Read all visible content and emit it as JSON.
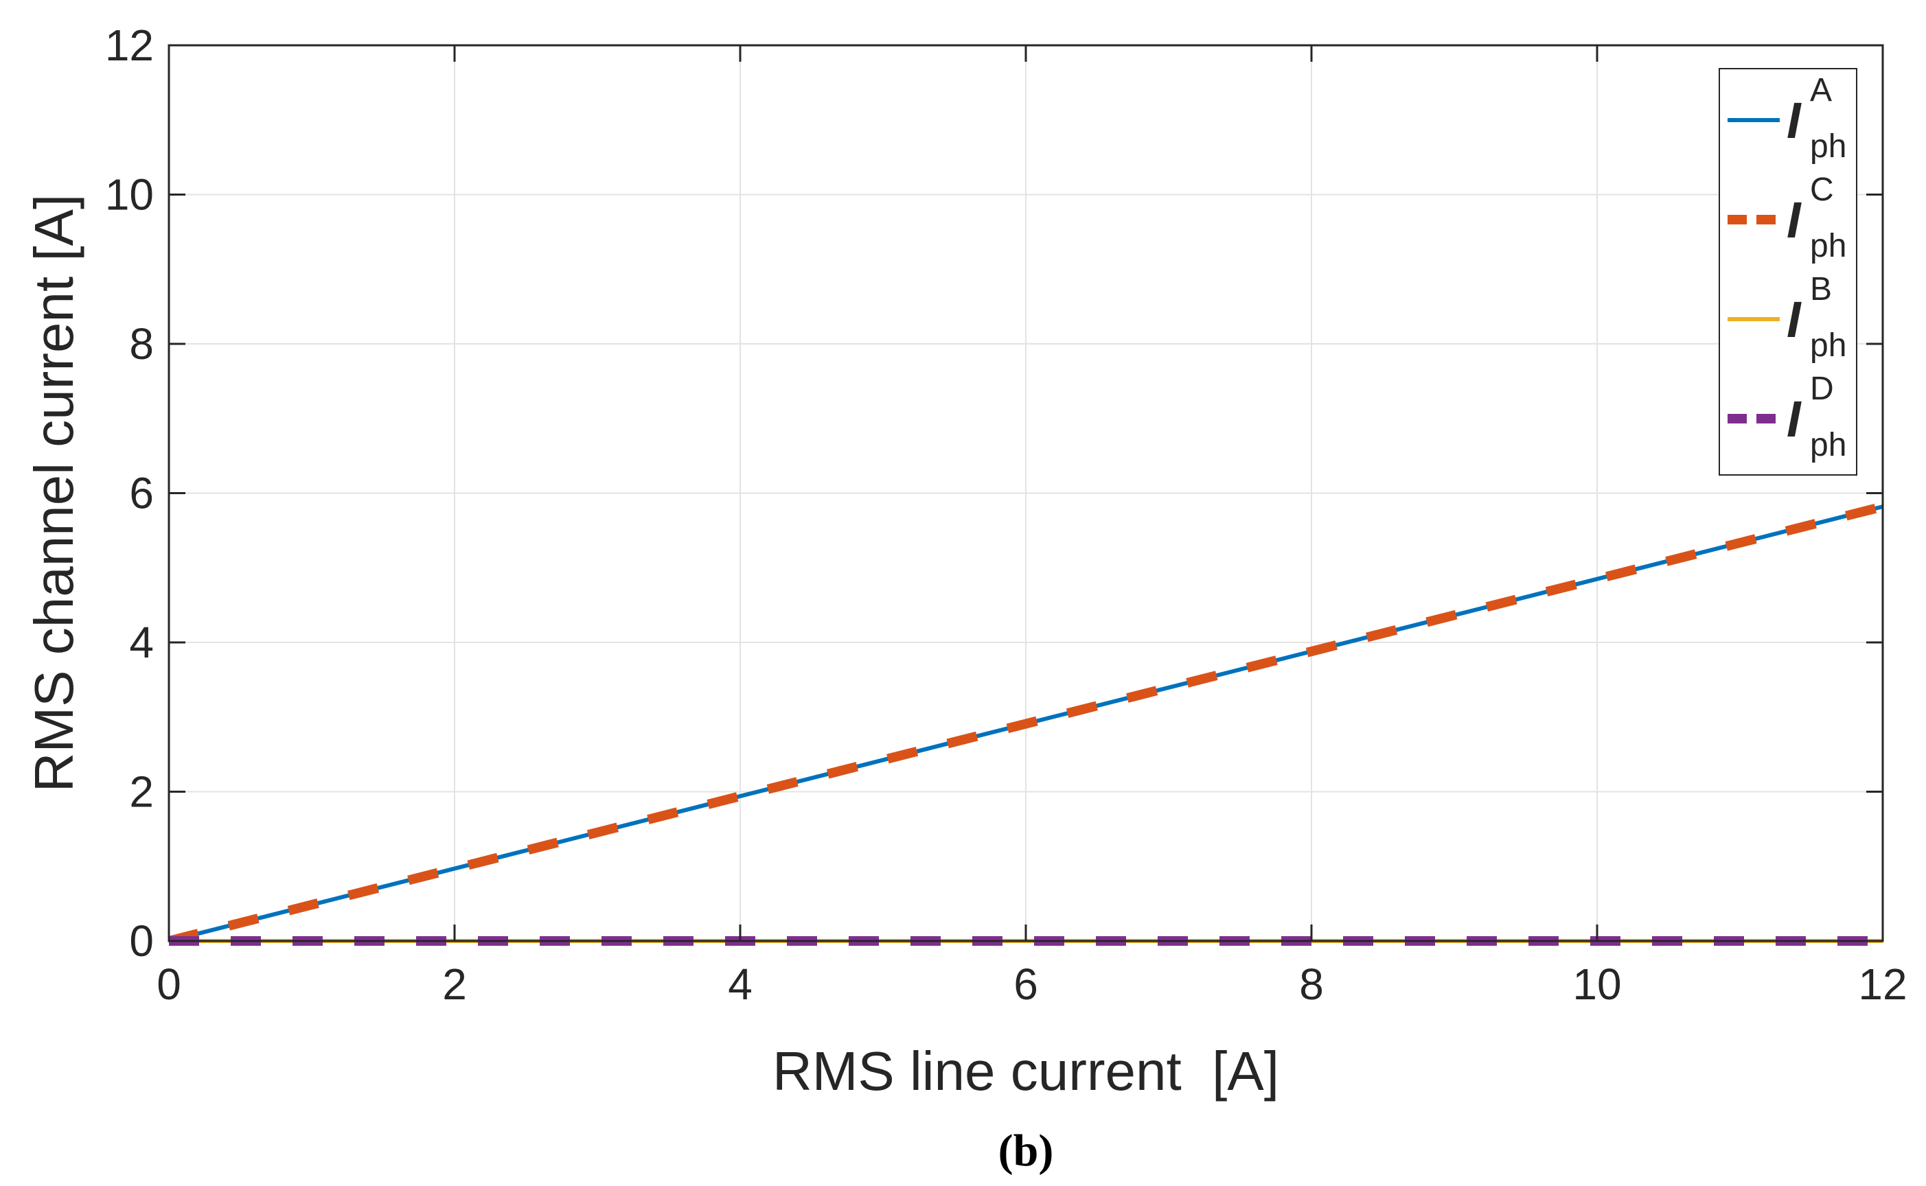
{
  "chart_data": {
    "type": "line",
    "xlabel": "RMS line current  [A]",
    "ylabel": "RMS channel current [A]",
    "xlim": [
      0,
      12
    ],
    "ylim": [
      0,
      12
    ],
    "xticks": [
      0,
      2,
      4,
      6,
      8,
      10,
      12
    ],
    "yticks": [
      0,
      2,
      4,
      6,
      8,
      10,
      12
    ],
    "grid": true,
    "legend_position": "top-right",
    "panel_label": "(b)",
    "series": [
      {
        "name": "I_ph^A",
        "legend": {
          "symbol": "I",
          "superscript": "A",
          "subscript": "ph"
        },
        "color": "#0072BD",
        "style": "solid",
        "x": [
          0,
          12
        ],
        "y": [
          0,
          5.82
        ]
      },
      {
        "name": "I_ph^C",
        "legend": {
          "symbol": "I",
          "superscript": "C",
          "subscript": "ph"
        },
        "color": "#D95319",
        "style": "dashed",
        "x": [
          0,
          12
        ],
        "y": [
          0,
          5.82
        ]
      },
      {
        "name": "I_ph^B",
        "legend": {
          "symbol": "I",
          "superscript": "B",
          "subscript": "ph"
        },
        "color": "#EDB120",
        "style": "solid",
        "x": [
          0,
          12
        ],
        "y": [
          0,
          0
        ]
      },
      {
        "name": "I_ph^D",
        "legend": {
          "symbol": "I",
          "superscript": "D",
          "subscript": "ph"
        },
        "color": "#7E2F8E",
        "style": "dashed",
        "x": [
          0,
          12
        ],
        "y": [
          0,
          0
        ]
      }
    ]
  }
}
